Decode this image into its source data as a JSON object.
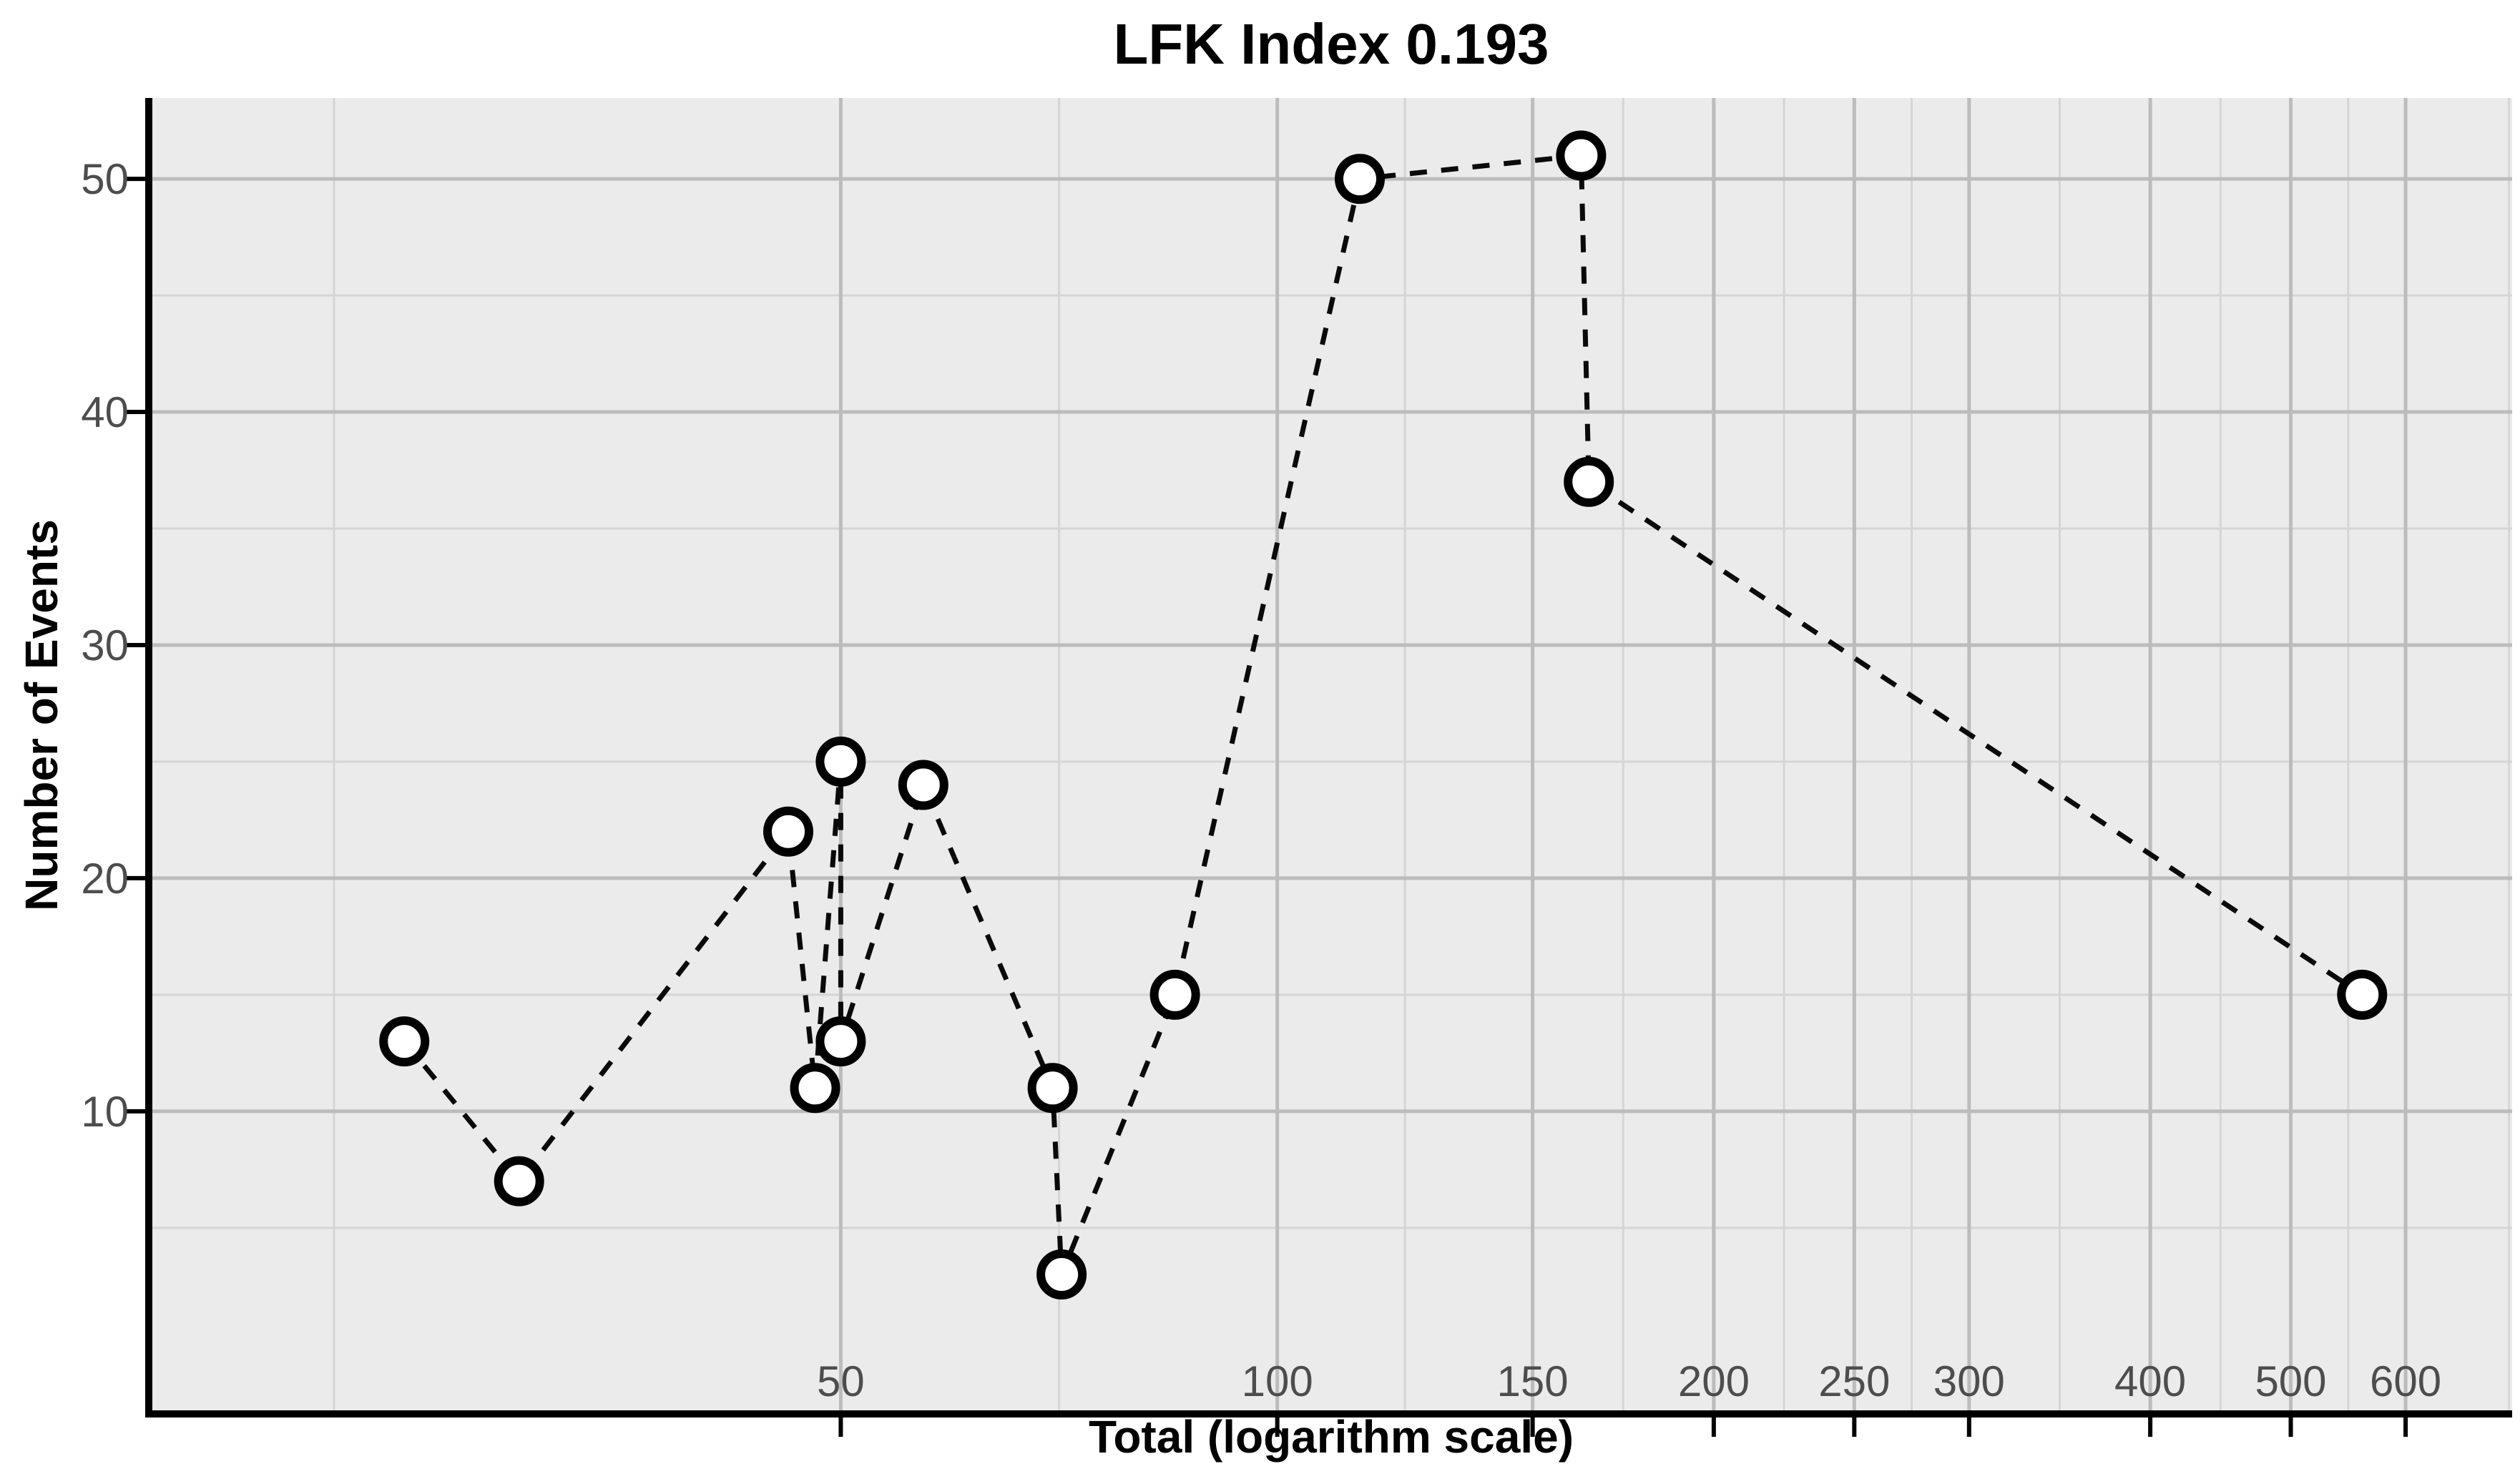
{
  "chart": {
    "title": "LFK Index 0.193",
    "lfk_index_value": "0.193"
  },
  "chart_data": {
    "type": "line",
    "title": "LFK Index 0.193",
    "xlabel": "Total (logarithm scale)",
    "ylabel": "Number of Events",
    "x_scale": "log10",
    "y_scale": "linear",
    "grid": true,
    "legend": "none",
    "line_style": "dashed",
    "marker": "open-circle",
    "lfk_index": 0.193,
    "x_major_ticks": [
      50,
      100,
      150,
      200,
      250,
      300,
      400,
      500,
      600
    ],
    "x_tick_labels": [
      "50",
      "100",
      "150",
      "200",
      "250",
      "300",
      "400",
      "500",
      "600"
    ],
    "x_minor_ticks": [
      22.36,
      70.71,
      122.47,
      173.21,
      223.61,
      273.86,
      346.41,
      447.21,
      547.72,
      707.11
    ],
    "y_major_ticks": [
      10,
      20,
      30,
      40,
      50
    ],
    "y_tick_labels": [
      "10",
      "20",
      "30",
      "40",
      "50"
    ],
    "y_minor_ticks": [
      5,
      15,
      25,
      35,
      45
    ],
    "xlim": [
      16.7,
      710.6
    ],
    "ylim": [
      -2.86,
      53.47
    ],
    "points": [
      {
        "x": 25,
        "y": 13
      },
      {
        "x": 30,
        "y": 7
      },
      {
        "x": 46,
        "y": 22
      },
      {
        "x": 48,
        "y": 11
      },
      {
        "x": 50,
        "y": 25
      },
      {
        "x": 50,
        "y": 13
      },
      {
        "x": 57,
        "y": 24
      },
      {
        "x": 70,
        "y": 11
      },
      {
        "x": 71,
        "y": 3
      },
      {
        "x": 85,
        "y": 15
      },
      {
        "x": 114,
        "y": 50
      },
      {
        "x": 162,
        "y": 51
      },
      {
        "x": 164,
        "y": 37
      },
      {
        "x": 560,
        "y": 15
      }
    ]
  },
  "colors": {
    "background": "#ffffff",
    "panel": "#ebebeb",
    "grid_major": "#bcbcbc",
    "grid_minor": "#d5d5d5",
    "axis_line": "#000000",
    "tick_mark": "#000000",
    "tick_label": "#4d4d4d",
    "series_line": "#0a0a0a",
    "marker_fill": "#ffffff",
    "marker_stroke": "#000000",
    "title_text": "#000000"
  }
}
